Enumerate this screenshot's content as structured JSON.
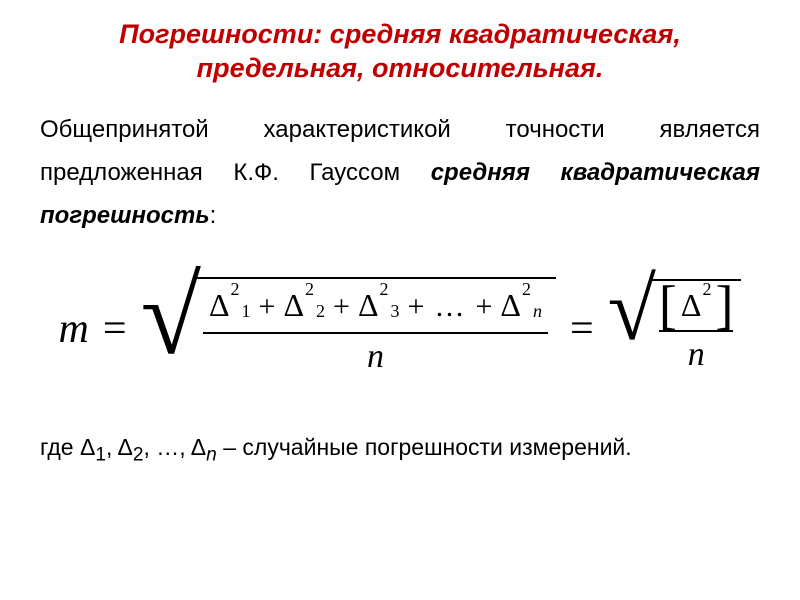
{
  "title": {
    "text": "Погрешности: средняя квадратическая, предельная, относительная.",
    "color": "#c00000",
    "fontsize_pt": 27
  },
  "paragraph": {
    "pre": "Общепринятой характеристикой точности является предложенная К.Ф. Гауссом ",
    "emph": "средняя квадратическая погрешность",
    "post": ":",
    "color": "#000000",
    "fontsize_pt": 24
  },
  "formula": {
    "lhs_var": "m",
    "eq": "=",
    "delta": "Δ",
    "plus": "+",
    "ellipsis": "…",
    "denominator": "n",
    "subs": [
      "1",
      "2",
      "3",
      "n"
    ],
    "sup": "2",
    "lbracket": "[",
    "rbracket": "]",
    "color": "#000000"
  },
  "footnote": {
    "pre": "где Δ",
    "s1": "1",
    "c1": ", Δ",
    "s2": "2",
    "c2": ", …, Δ",
    "sn": "n",
    "post": " – случайные погрешности измерений.",
    "color": "#000000",
    "fontsize_pt": 23
  }
}
